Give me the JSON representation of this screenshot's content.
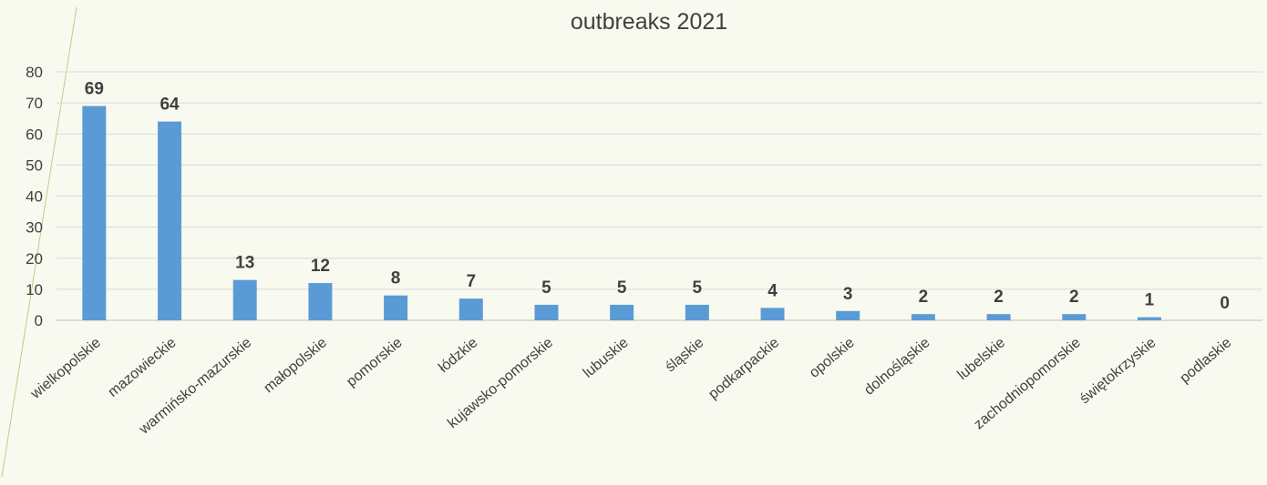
{
  "chart_data": {
    "type": "bar",
    "title": "outbreaks 2021",
    "xlabel": "",
    "ylabel": "",
    "categories": [
      "wielkopolskie",
      "mazowieckie",
      "warmińsko-mazurskie",
      "małopolskie",
      "pomorskie",
      "łódzkie",
      "kujawsko-pomorskie",
      "lubuskie",
      "śląskie",
      "podkarpackie",
      "opolskie",
      "dolnośląskie",
      "lubelskie",
      "zachodniopomorskie",
      "świętokrzyskie",
      "podlaskie"
    ],
    "values": [
      69,
      64,
      13,
      12,
      8,
      7,
      5,
      5,
      5,
      4,
      3,
      2,
      2,
      2,
      1,
      0
    ],
    "ylim": [
      0,
      80
    ],
    "yticks": [
      "0",
      "10",
      "20",
      "30",
      "40",
      "50",
      "60",
      "70",
      "80"
    ],
    "grid": true,
    "legend": "none",
    "data_labels": true,
    "colors": {
      "bar": "#5b9bd5",
      "text": "#404040",
      "grid": "#d9d9d9",
      "background": "#f8faef"
    }
  }
}
